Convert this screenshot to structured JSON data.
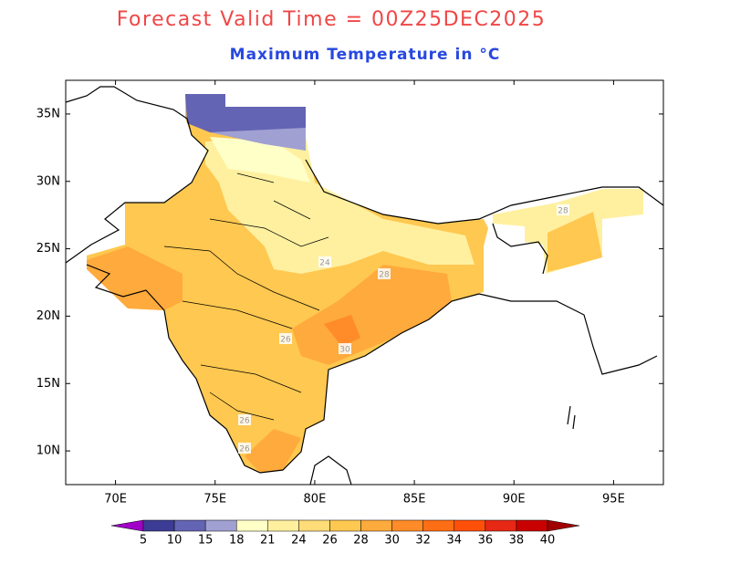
{
  "title": "Forecast Valid Time = 00Z25DEC2025",
  "subtitle": "Maximum Temperature in °C",
  "map": {
    "lonlim": [
      67.5,
      97.5
    ],
    "latlim": [
      7.5,
      37.5
    ],
    "lon_ticks": [
      {
        "value": 70,
        "label": "70E"
      },
      {
        "value": 75,
        "label": "75E"
      },
      {
        "value": 80,
        "label": "80E"
      },
      {
        "value": 85,
        "label": "85E"
      },
      {
        "value": 90,
        "label": "90E"
      },
      {
        "value": 95,
        "label": "95E"
      }
    ],
    "lat_ticks": [
      {
        "value": 35,
        "label": "35N"
      },
      {
        "value": 30,
        "label": "30N"
      },
      {
        "value": 25,
        "label": "25N"
      },
      {
        "value": 20,
        "label": "20N"
      },
      {
        "value": 15,
        "label": "15N"
      },
      {
        "value": 10,
        "label": "10N"
      }
    ],
    "contour_labels": [
      24,
      28,
      26,
      30,
      28,
      26,
      26
    ]
  },
  "colorbar": {
    "levels": [
      5,
      10,
      15,
      18,
      21,
      24,
      26,
      28,
      30,
      32,
      34,
      36,
      38,
      40
    ],
    "colors": [
      "#a000c8",
      "#3c3c96",
      "#6464b4",
      "#a0a0d2",
      "#ffffc8",
      "#fff0a0",
      "#ffdc78",
      "#ffc850",
      "#ffaa3c",
      "#ff8c28",
      "#ff6e14",
      "#ff500a",
      "#e62814",
      "#c80000",
      "#a00000"
    ]
  }
}
